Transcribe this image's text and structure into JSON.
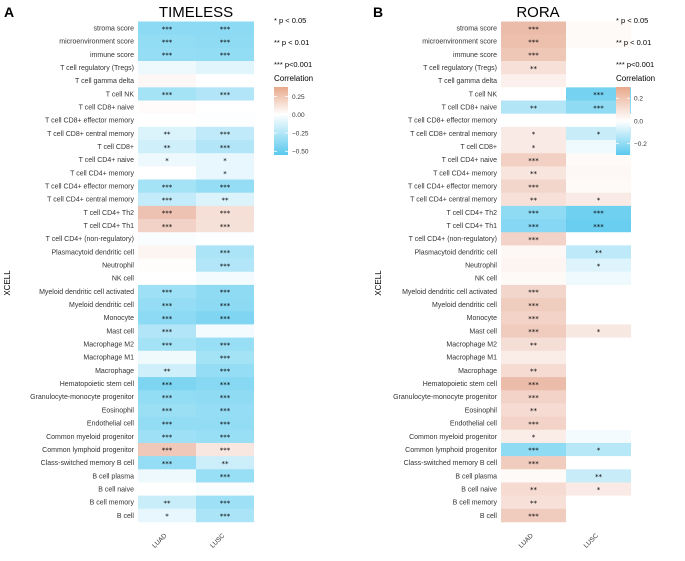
{
  "chart_data": [
    {
      "type": "heatmap",
      "panel_label": "A",
      "title": "TIMELESS",
      "ylabel": "XCELL",
      "columns": [
        "LUAD",
        "LUSC"
      ],
      "rows": [
        "stroma score",
        "microenvironment score",
        "immune score",
        "T cell regulatory (Tregs)",
        "T cell gamma delta",
        "T cell NK",
        "T cell CD8+ naive",
        "T cell CD8+ effector memory",
        "T cell CD8+ central memory",
        "T cell CD8+",
        "T cell CD4+ naive",
        "T cell CD4+ memory",
        "T cell CD4+ effector memory",
        "T cell CD4+ central memory",
        "T cell CD4+ Th2",
        "T cell CD4+ Th1",
        "T cell CD4+ (non-regulatory)",
        "Plasmacytoid dendritic cell",
        "Neutrophil",
        "NK cell",
        "Myeloid dendritic cell activated",
        "Myeloid dendritic cell",
        "Monocyte",
        "Mast cell",
        "Macrophage M2",
        "Macrophage M1",
        "Macrophage",
        "Hematopoietic stem cell",
        "Granulocyte-monocyte progenitor",
        "Eosinophil",
        "Endothelial cell",
        "Common myeloid progenitor",
        "Common lymphoid progenitor",
        "Class-switched memory B cell",
        "B cell plasma",
        "B cell naive",
        "B cell memory",
        "B cell"
      ],
      "values": [
        [
          -0.38,
          -0.38
        ],
        [
          -0.36,
          -0.37
        ],
        [
          -0.35,
          -0.36
        ],
        [
          -0.06,
          -0.1
        ],
        [
          0.04,
          0.0
        ],
        [
          -0.3,
          -0.26
        ],
        [
          0.02,
          0.0
        ],
        [
          0.0,
          -0.01
        ],
        [
          -0.12,
          -0.21
        ],
        [
          -0.16,
          -0.26
        ],
        [
          -0.06,
          -0.08
        ],
        [
          0.0,
          -0.08
        ],
        [
          -0.3,
          -0.35
        ],
        [
          -0.2,
          -0.12
        ],
        [
          0.3,
          0.16
        ],
        [
          0.22,
          0.15
        ],
        [
          -0.02,
          -0.01
        ],
        [
          0.05,
          -0.28
        ],
        [
          0.01,
          -0.26
        ],
        [
          0.0,
          -0.04
        ],
        [
          -0.32,
          -0.37
        ],
        [
          -0.35,
          -0.38
        ],
        [
          -0.38,
          -0.42
        ],
        [
          -0.26,
          -0.04
        ],
        [
          -0.3,
          -0.34
        ],
        [
          -0.05,
          -0.3
        ],
        [
          -0.16,
          -0.35
        ],
        [
          -0.43,
          -0.4
        ],
        [
          -0.36,
          -0.37
        ],
        [
          -0.33,
          -0.35
        ],
        [
          -0.36,
          -0.36
        ],
        [
          -0.32,
          -0.34
        ],
        [
          0.27,
          0.12
        ],
        [
          -0.35,
          -0.17
        ],
        [
          -0.06,
          -0.34
        ],
        [
          0.0,
          -0.02
        ],
        [
          -0.18,
          -0.32
        ],
        [
          -0.08,
          -0.28
        ]
      ],
      "stars": [
        [
          "***",
          "***"
        ],
        [
          "***",
          "***"
        ],
        [
          "***",
          "***"
        ],
        [
          "",
          ""
        ],
        [
          "",
          ""
        ],
        [
          "***",
          "***"
        ],
        [
          "",
          ""
        ],
        [
          "",
          ""
        ],
        [
          "**",
          "***"
        ],
        [
          "**",
          "***"
        ],
        [
          "*",
          "*"
        ],
        [
          "",
          "*"
        ],
        [
          "***",
          "***"
        ],
        [
          "***",
          "**"
        ],
        [
          "***",
          "***"
        ],
        [
          "***",
          "***"
        ],
        [
          "",
          ""
        ],
        [
          "",
          "***"
        ],
        [
          "",
          "***"
        ],
        [
          "",
          ""
        ],
        [
          "***",
          "***"
        ],
        [
          "***",
          "***"
        ],
        [
          "***",
          "***"
        ],
        [
          "***",
          ""
        ],
        [
          "***",
          "***"
        ],
        [
          "",
          "***"
        ],
        [
          "**",
          "***"
        ],
        [
          "***",
          "***"
        ],
        [
          "***",
          "***"
        ],
        [
          "***",
          "***"
        ],
        [
          "***",
          "***"
        ],
        [
          "***",
          "***"
        ],
        [
          "***",
          "***"
        ],
        [
          "***",
          "**"
        ],
        [
          "",
          "***"
        ],
        [
          "",
          ""
        ],
        [
          "**",
          "***"
        ],
        [
          "*",
          "***"
        ]
      ],
      "significance_legend": [
        "* p < 0.05",
        "** p < 0.01",
        "*** p<0.001"
      ],
      "colorbar": {
        "title": "Correlation",
        "ticks": [
          "0.25",
          "0.00",
          "−0.25",
          "−0.50"
        ],
        "tick_values": [
          0.25,
          0.0,
          -0.25,
          -0.5
        ],
        "range": [
          -0.55,
          0.38
        ]
      }
    },
    {
      "type": "heatmap",
      "panel_label": "B",
      "title": "RORA",
      "ylabel": "XCELL",
      "columns": [
        "LUAD",
        "LUSC"
      ],
      "rows": [
        "stroma score",
        "microenvironment score",
        "immune score",
        "T cell regulatory (Tregs)",
        "T cell gamma delta",
        "T cell NK",
        "T cell CD8+ naive",
        "T cell CD8+ effector memory",
        "T cell CD8+ central memory",
        "T cell CD8+",
        "T cell CD4+ naive",
        "T cell CD4+ memory",
        "T cell CD4+ effector memory",
        "T cell CD4+ central memory",
        "T cell CD4+ Th2",
        "T cell CD4+ Th1",
        "T cell CD4+ (non-regulatory)",
        "Plasmacytoid dendritic cell",
        "Neutrophil",
        "NK cell",
        "Myeloid dendritic cell activated",
        "Myeloid dendritic cell",
        "Monocyte",
        "Mast cell",
        "Macrophage M2",
        "Macrophage M1",
        "Macrophage",
        "Hematopoietic stem cell",
        "Granulocyte-monocyte progenitor",
        "Eosinophil",
        "Endothelial cell",
        "Common myeloid progenitor",
        "Common lymphoid progenitor",
        "Class-switched memory B cell",
        "B cell plasma",
        "B cell naive",
        "B cell memory",
        "B cell"
      ],
      "values": [
        [
          0.26,
          0.02
        ],
        [
          0.25,
          0.02
        ],
        [
          0.22,
          0.0
        ],
        [
          0.12,
          0.0
        ],
        [
          0.06,
          0.0
        ],
        [
          0.0,
          -0.25
        ],
        [
          -0.14,
          -0.2
        ],
        [
          0.0,
          0.0
        ],
        [
          0.08,
          -0.1
        ],
        [
          0.08,
          -0.03
        ],
        [
          0.18,
          0.02
        ],
        [
          0.1,
          0.03
        ],
        [
          0.16,
          0.02
        ],
        [
          0.12,
          0.08
        ],
        [
          -0.2,
          -0.26
        ],
        [
          -0.22,
          -0.27
        ],
        [
          0.17,
          0.0
        ],
        [
          0.03,
          -0.12
        ],
        [
          0.04,
          -0.06
        ],
        [
          0.02,
          -0.03
        ],
        [
          0.16,
          0.0
        ],
        [
          0.2,
          0.0
        ],
        [
          0.17,
          0.0
        ],
        [
          0.2,
          0.09
        ],
        [
          0.13,
          0.0
        ],
        [
          0.07,
          0.0
        ],
        [
          0.14,
          0.0
        ],
        [
          0.26,
          0.0
        ],
        [
          0.17,
          0.0
        ],
        [
          0.14,
          0.0
        ],
        [
          0.17,
          0.0
        ],
        [
          0.07,
          -0.02
        ],
        [
          -0.2,
          -0.13
        ],
        [
          0.2,
          0.0
        ],
        [
          0.02,
          -0.1
        ],
        [
          0.14,
          0.08
        ],
        [
          0.12,
          0.0
        ],
        [
          0.2,
          0.0
        ]
      ],
      "stars": [
        [
          "***",
          ""
        ],
        [
          "***",
          ""
        ],
        [
          "***",
          ""
        ],
        [
          "**",
          ""
        ],
        [
          "",
          ""
        ],
        [
          "",
          "***"
        ],
        [
          "**",
          "***"
        ],
        [
          "",
          ""
        ],
        [
          "*",
          "*"
        ],
        [
          "*",
          ""
        ],
        [
          "***",
          ""
        ],
        [
          "**",
          ""
        ],
        [
          "***",
          ""
        ],
        [
          "**",
          "*"
        ],
        [
          "***",
          "***"
        ],
        [
          "***",
          "***"
        ],
        [
          "***",
          ""
        ],
        [
          "",
          "**"
        ],
        [
          "",
          "*"
        ],
        [
          "",
          ""
        ],
        [
          "***",
          ""
        ],
        [
          "***",
          ""
        ],
        [
          "***",
          ""
        ],
        [
          "***",
          "*"
        ],
        [
          "**",
          ""
        ],
        [
          "",
          ""
        ],
        [
          "**",
          ""
        ],
        [
          "***",
          ""
        ],
        [
          "***",
          ""
        ],
        [
          "**",
          ""
        ],
        [
          "***",
          ""
        ],
        [
          "*",
          ""
        ],
        [
          "***",
          "*"
        ],
        [
          "***",
          ""
        ],
        [
          "",
          "**"
        ],
        [
          "**",
          "*"
        ],
        [
          "**",
          ""
        ],
        [
          "***",
          ""
        ]
      ],
      "significance_legend": [
        "* p < 0.05",
        "** p < 0.01",
        "*** p<0.001"
      ],
      "colorbar": {
        "title": "Correlation",
        "ticks": [
          "0.2",
          "0.0",
          "−0.2"
        ],
        "tick_values": [
          0.2,
          0.0,
          -0.2
        ],
        "range": [
          -0.3,
          0.3
        ]
      }
    }
  ]
}
